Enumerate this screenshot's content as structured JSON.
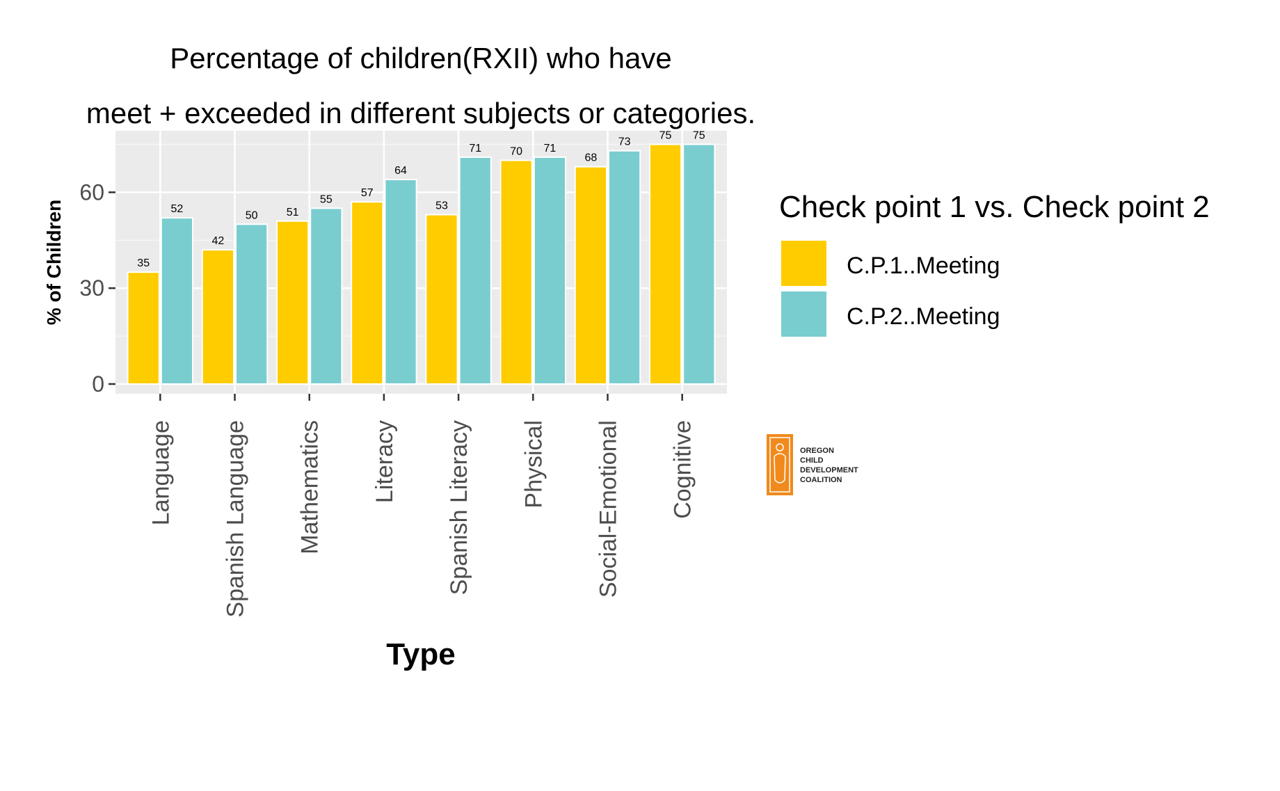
{
  "chart_data": {
    "type": "bar",
    "title_lines": [
      "Percentage of children(RXII) who have",
      "meet + exceeded in different subjects or categories."
    ],
    "xlabel": "Type",
    "ylabel": "% of Children",
    "ylim": [
      0,
      79
    ],
    "yticks": [
      0,
      30,
      60
    ],
    "categories": [
      "Language",
      "Spanish Language",
      "Mathematics",
      "Literacy",
      "Spanish Literacy",
      "Physical",
      "Social-Emotional",
      "Cognitive"
    ],
    "series": [
      {
        "name": "C.P.1..Meeting",
        "color": "#FFCC00",
        "values": [
          35,
          42,
          51,
          57,
          53,
          70,
          68,
          75
        ]
      },
      {
        "name": "C.P.2..Meeting",
        "color": "#79CDCF",
        "values": [
          52,
          50,
          55,
          64,
          71,
          71,
          73,
          75
        ]
      }
    ],
    "legend": {
      "title": "Check point 1 vs. Check point 2",
      "position": "right"
    },
    "grid": true,
    "panel_background": "#EBEBEB",
    "show_data_labels": true
  },
  "logo": {
    "lines": [
      "OREGON",
      "CHILD",
      "DEVELOPMENT",
      "COALITION"
    ],
    "color": "#F08A1C"
  }
}
